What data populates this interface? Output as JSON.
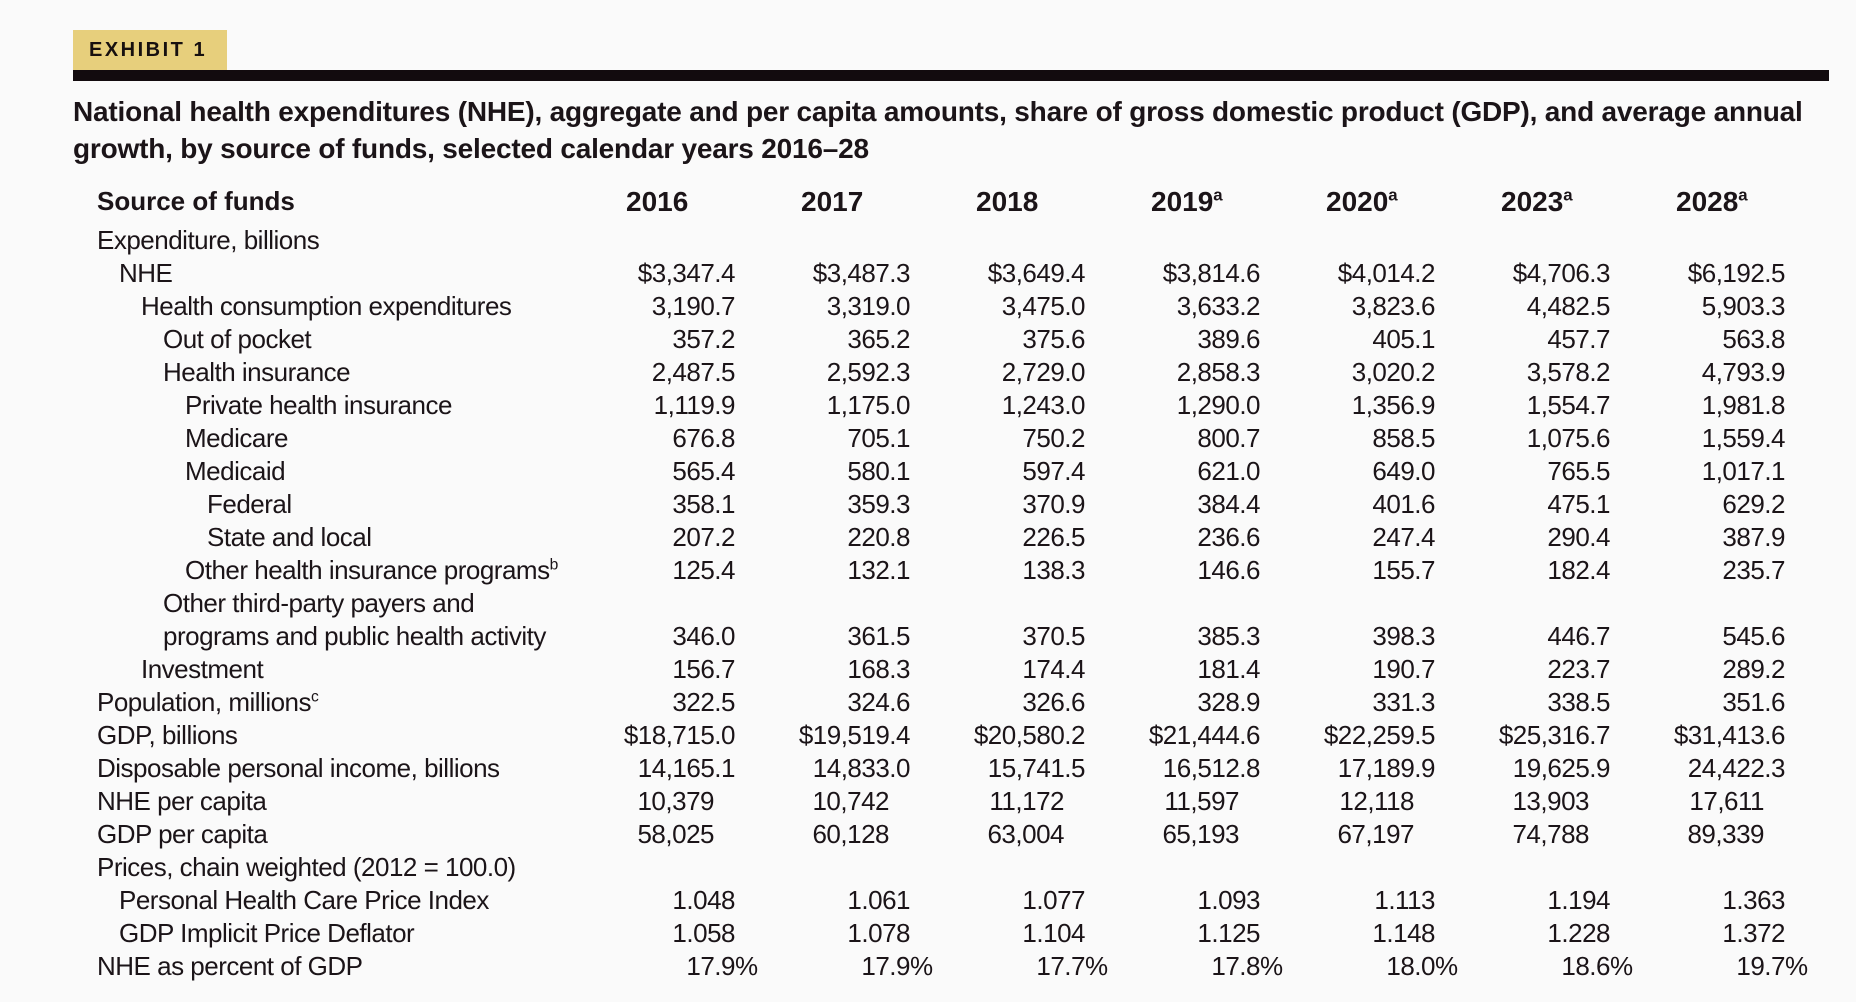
{
  "exhibit": {
    "label": "EXHIBIT 1"
  },
  "title": "National health expenditures (NHE), aggregate and per capita amounts, share of gross domestic product (GDP), and average annual growth, by source of funds, selected calendar years 2016–28",
  "colors": {
    "exhibit-bg": "#e7cf7c",
    "bar": "#120b0e",
    "text": "#1b1418",
    "page-bg": "#fafafa"
  },
  "table": {
    "header": {
      "label": "Source of funds",
      "columns": [
        {
          "label": "2016",
          "sup": ""
        },
        {
          "label": "2017",
          "sup": ""
        },
        {
          "label": "2018",
          "sup": ""
        },
        {
          "label": "2019",
          "sup": "a"
        },
        {
          "label": "2020",
          "sup": "a"
        },
        {
          "label": "2023",
          "sup": "a"
        },
        {
          "label": "2028",
          "sup": "a"
        }
      ]
    },
    "rows": [
      {
        "label": "Expenditure, billions",
        "sup": "",
        "indent": 0,
        "values": [
          "",
          "",
          "",
          "",
          "",
          "",
          ""
        ]
      },
      {
        "label": "NHE",
        "sup": "",
        "indent": 1,
        "values": [
          "$3,347.4",
          "$3,487.3",
          "$3,649.4",
          "$3,814.6",
          "$4,014.2",
          "$4,706.3",
          "$6,192.5"
        ]
      },
      {
        "label": "Health consumption expenditures",
        "sup": "",
        "indent": 2,
        "values": [
          "3,190.7",
          "3,319.0",
          "3,475.0",
          "3,633.2",
          "3,823.6",
          "4,482.5",
          "5,903.3"
        ]
      },
      {
        "label": "Out of pocket",
        "sup": "",
        "indent": 3,
        "values": [
          "357.2",
          "365.2",
          "375.6",
          "389.6",
          "405.1",
          "457.7",
          "563.8"
        ]
      },
      {
        "label": "Health insurance",
        "sup": "",
        "indent": 3,
        "values": [
          "2,487.5",
          "2,592.3",
          "2,729.0",
          "2,858.3",
          "3,020.2",
          "3,578.2",
          "4,793.9"
        ]
      },
      {
        "label": "Private health insurance",
        "sup": "",
        "indent": 4,
        "values": [
          "1,119.9",
          "1,175.0",
          "1,243.0",
          "1,290.0",
          "1,356.9",
          "1,554.7",
          "1,981.8"
        ]
      },
      {
        "label": "Medicare",
        "sup": "",
        "indent": 4,
        "values": [
          "676.8",
          "705.1",
          "750.2",
          "800.7",
          "858.5",
          "1,075.6",
          "1,559.4"
        ]
      },
      {
        "label": "Medicaid",
        "sup": "",
        "indent": 4,
        "values": [
          "565.4",
          "580.1",
          "597.4",
          "621.0",
          "649.0",
          "765.5",
          "1,017.1"
        ]
      },
      {
        "label": "Federal",
        "sup": "",
        "indent": 5,
        "values": [
          "358.1",
          "359.3",
          "370.9",
          "384.4",
          "401.6",
          "475.1",
          "629.2"
        ]
      },
      {
        "label": "State and local",
        "sup": "",
        "indent": 5,
        "values": [
          "207.2",
          "220.8",
          "226.5",
          "236.6",
          "247.4",
          "290.4",
          "387.9"
        ]
      },
      {
        "label": "Other health insurance programs",
        "sup": "b",
        "indent": 4,
        "values": [
          "125.4",
          "132.1",
          "138.3",
          "146.6",
          "155.7",
          "182.4",
          "235.7"
        ]
      },
      {
        "label": "Other third-party payers and\nprograms and public health activity",
        "sup": "",
        "indent": 3,
        "values": [
          "346.0",
          "361.5",
          "370.5",
          "385.3",
          "398.3",
          "446.7",
          "545.6"
        ]
      },
      {
        "label": "Investment",
        "sup": "",
        "indent": 2,
        "values": [
          "156.7",
          "168.3",
          "174.4",
          "181.4",
          "190.7",
          "223.7",
          "289.2"
        ]
      },
      {
        "label": "Population, millions",
        "sup": "c",
        "indent": 0,
        "values": [
          "322.5",
          "324.6",
          "326.6",
          "328.9",
          "331.3",
          "338.5",
          "351.6"
        ]
      },
      {
        "label": "GDP, billions",
        "sup": "",
        "indent": 0,
        "values": [
          "$18,715.0",
          "$19,519.4",
          "$20,580.2",
          "$21,444.6",
          "$22,259.5",
          "$25,316.7",
          "$31,413.6"
        ]
      },
      {
        "label": "Disposable personal income, billions",
        "sup": "",
        "indent": 0,
        "values": [
          "14,165.1",
          "14,833.0",
          "15,741.5",
          "16,512.8",
          "17,189.9",
          "19,625.9",
          "24,422.3"
        ]
      },
      {
        "label": "NHE per capita",
        "sup": "",
        "indent": 0,
        "values": [
          "10,379",
          "10,742",
          "11,172",
          "11,597",
          "12,118",
          "13,903",
          "17,611"
        ]
      },
      {
        "label": "GDP per capita",
        "sup": "",
        "indent": 0,
        "values": [
          "58,025",
          "60,128",
          "63,004",
          "65,193",
          "67,197",
          "74,788",
          "89,339"
        ]
      },
      {
        "label": "Prices, chain weighted (2012 = 100.0)",
        "sup": "",
        "indent": 0,
        "values": [
          "",
          "",
          "",
          "",
          "",
          "",
          ""
        ]
      },
      {
        "label": "Personal Health Care Price Index",
        "sup": "",
        "indent": 1,
        "values": [
          "1.048",
          "1.061",
          "1.077",
          "1.093",
          "1.113",
          "1.194",
          "1.363"
        ]
      },
      {
        "label": "GDP Implicit Price Deflator",
        "sup": "",
        "indent": 1,
        "values": [
          "1.058",
          "1.078",
          "1.104",
          "1.125",
          "1.148",
          "1.228",
          "1.372"
        ]
      },
      {
        "label": "NHE as percent of GDP",
        "sup": "",
        "indent": 0,
        "values": [
          "17.9%",
          "17.9%",
          "17.7%",
          "17.8%",
          "18.0%",
          "18.6%",
          "19.7%"
        ]
      }
    ]
  }
}
